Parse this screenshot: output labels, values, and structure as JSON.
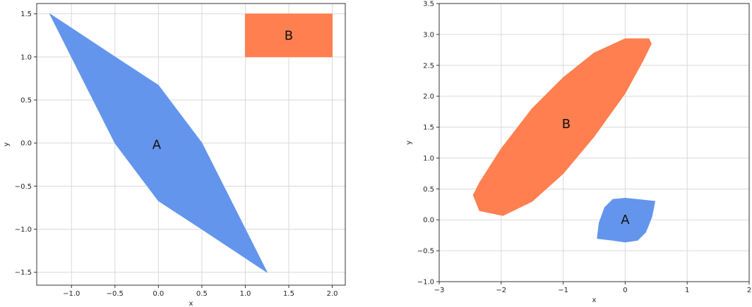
{
  "chart_data": [
    {
      "type": "area",
      "xlabel": "x",
      "ylabel": "y",
      "xlim": [
        -1.4,
        2.15
      ],
      "ylim": [
        -1.65,
        1.62
      ],
      "xticks": [
        -1.0,
        -0.5,
        0.0,
        0.5,
        1.0,
        1.5,
        2.0
      ],
      "xtick_labels": [
        "−1.0",
        "−0.5",
        "0.0",
        "0.5",
        "1.0",
        "1.5",
        "2.0"
      ],
      "yticks": [
        -1.5,
        -1.0,
        -0.5,
        0.0,
        0.5,
        1.0,
        1.5
      ],
      "ytick_labels": [
        "−1.5",
        "−1.0",
        "−0.5",
        "0.0",
        "0.5",
        "1.0",
        "1.5"
      ],
      "grid": true,
      "shapes": [
        {
          "name": "A",
          "color": "#6495ED",
          "points": [
            [
              -1.25,
              1.5
            ],
            [
              -0.5,
              1.0
            ],
            [
              0.0,
              0.67
            ],
            [
              0.5,
              0.0
            ],
            [
              1.25,
              -1.5
            ],
            [
              0.5,
              -1.0
            ],
            [
              0.0,
              -0.67
            ],
            [
              -0.5,
              0.0
            ]
          ],
          "label_pos": [
            -0.02,
            -0.02
          ]
        },
        {
          "name": "B",
          "color": "#FF7F50",
          "points": [
            [
              1.0,
              1.0
            ],
            [
              2.0,
              1.0
            ],
            [
              2.0,
              1.5
            ],
            [
              1.0,
              1.5
            ]
          ],
          "label_pos": [
            1.5,
            1.25
          ]
        }
      ]
    },
    {
      "type": "area",
      "xlabel": "x",
      "ylabel": "y",
      "xlim": [
        -3,
        2
      ],
      "ylim": [
        -1.0,
        3.5
      ],
      "xticks": [
        -3,
        -2,
        -1,
        0,
        1,
        2
      ],
      "xtick_labels": [
        "−3",
        "−2",
        "−1",
        "0",
        "1",
        "2"
      ],
      "yticks": [
        -1.0,
        -0.5,
        0.0,
        0.5,
        1.0,
        1.5,
        2.0,
        2.5,
        3.0,
        3.5
      ],
      "ytick_labels": [
        "−1.0",
        "−0.5",
        "0.0",
        "0.5",
        "1.0",
        "1.5",
        "2.0",
        "2.5",
        "3.0",
        "3.5"
      ],
      "grid": true,
      "shapes": [
        {
          "name": "B",
          "color": "#FF7F50",
          "points": [
            [
              -1.97,
              0.07
            ],
            [
              -1.5,
              0.3
            ],
            [
              -1.0,
              0.75
            ],
            [
              -0.5,
              1.35
            ],
            [
              0.0,
              2.05
            ],
            [
              0.3,
              2.6
            ],
            [
              0.42,
              2.85
            ],
            [
              0.38,
              2.93
            ],
            [
              0.0,
              2.93
            ],
            [
              -0.5,
              2.7
            ],
            [
              -1.0,
              2.3
            ],
            [
              -1.5,
              1.8
            ],
            [
              -2.0,
              1.15
            ],
            [
              -2.35,
              0.6
            ],
            [
              -2.45,
              0.4
            ],
            [
              -2.35,
              0.15
            ]
          ],
          "label_pos": [
            -0.95,
            1.55
          ]
        },
        {
          "name": "A",
          "color": "#6495ED",
          "points": [
            [
              -0.45,
              -0.3
            ],
            [
              -0.42,
              -0.05
            ],
            [
              -0.33,
              0.2
            ],
            [
              -0.2,
              0.33
            ],
            [
              0.0,
              0.35
            ],
            [
              0.2,
              0.33
            ],
            [
              0.48,
              0.3
            ],
            [
              0.43,
              0.05
            ],
            [
              0.33,
              -0.2
            ],
            [
              0.2,
              -0.33
            ],
            [
              0.0,
              -0.36
            ],
            [
              -0.2,
              -0.33
            ]
          ],
          "label_pos": [
            0.0,
            0.0
          ]
        }
      ]
    }
  ]
}
